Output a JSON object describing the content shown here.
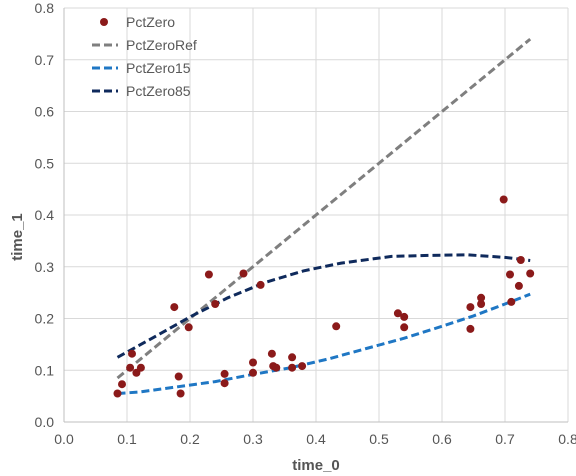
{
  "chart_data": {
    "type": "scatter",
    "xlabel": "time_0",
    "ylabel": "time_1",
    "xlim": [
      0,
      0.8
    ],
    "ylim": [
      0,
      0.8
    ],
    "xticks": [
      "0.0",
      "0.1",
      "0.2",
      "0.3",
      "0.4",
      "0.5",
      "0.6",
      "0.7",
      "0.8"
    ],
    "yticks": [
      "0.0",
      "0.1",
      "0.2",
      "0.3",
      "0.4",
      "0.5",
      "0.6",
      "0.7",
      "0.8"
    ],
    "tick_values": [
      0,
      0.1,
      0.2,
      0.3,
      0.4,
      0.5,
      0.6,
      0.7,
      0.8
    ],
    "grid": true,
    "legend_position": "top-left",
    "series": [
      {
        "name": "PctZero",
        "kind": "scatter",
        "color": "#8b1a1a",
        "points": [
          [
            0.085,
            0.055
          ],
          [
            0.092,
            0.073
          ],
          [
            0.105,
            0.105
          ],
          [
            0.108,
            0.132
          ],
          [
            0.115,
            0.095
          ],
          [
            0.122,
            0.105
          ],
          [
            0.175,
            0.222
          ],
          [
            0.182,
            0.088
          ],
          [
            0.185,
            0.055
          ],
          [
            0.198,
            0.183
          ],
          [
            0.23,
            0.285
          ],
          [
            0.24,
            0.228
          ],
          [
            0.255,
            0.093
          ],
          [
            0.255,
            0.075
          ],
          [
            0.285,
            0.287
          ],
          [
            0.3,
            0.115
          ],
          [
            0.3,
            0.095
          ],
          [
            0.312,
            0.265
          ],
          [
            0.33,
            0.132
          ],
          [
            0.332,
            0.108
          ],
          [
            0.337,
            0.105
          ],
          [
            0.362,
            0.125
          ],
          [
            0.362,
            0.105
          ],
          [
            0.378,
            0.108
          ],
          [
            0.432,
            0.185
          ],
          [
            0.53,
            0.21
          ],
          [
            0.54,
            0.183
          ],
          [
            0.54,
            0.203
          ],
          [
            0.645,
            0.18
          ],
          [
            0.645,
            0.222
          ],
          [
            0.662,
            0.24
          ],
          [
            0.662,
            0.228
          ],
          [
            0.698,
            0.43
          ],
          [
            0.708,
            0.285
          ],
          [
            0.71,
            0.232
          ],
          [
            0.722,
            0.263
          ],
          [
            0.725,
            0.313
          ],
          [
            0.74,
            0.287
          ]
        ]
      },
      {
        "name": "PctZeroRef",
        "kind": "line",
        "color": "#7f7f7f",
        "points": [
          [
            0.085,
            0.085
          ],
          [
            0.74,
            0.74
          ]
        ]
      },
      {
        "name": "PctZero15",
        "kind": "line",
        "color": "#1f77c4",
        "points": [
          [
            0.085,
            0.055
          ],
          [
            0.12,
            0.058
          ],
          [
            0.18,
            0.068
          ],
          [
            0.24,
            0.078
          ],
          [
            0.3,
            0.092
          ],
          [
            0.36,
            0.105
          ],
          [
            0.42,
            0.122
          ],
          [
            0.48,
            0.142
          ],
          [
            0.54,
            0.162
          ],
          [
            0.6,
            0.185
          ],
          [
            0.65,
            0.205
          ],
          [
            0.7,
            0.228
          ],
          [
            0.74,
            0.247
          ]
        ]
      },
      {
        "name": "PctZero85",
        "kind": "line",
        "color": "#0f2a5c",
        "points": [
          [
            0.085,
            0.125
          ],
          [
            0.14,
            0.162
          ],
          [
            0.2,
            0.203
          ],
          [
            0.26,
            0.24
          ],
          [
            0.32,
            0.27
          ],
          [
            0.38,
            0.292
          ],
          [
            0.44,
            0.307
          ],
          [
            0.52,
            0.32
          ],
          [
            0.58,
            0.322
          ],
          [
            0.64,
            0.323
          ],
          [
            0.7,
            0.318
          ],
          [
            0.74,
            0.312
          ]
        ]
      }
    ]
  }
}
